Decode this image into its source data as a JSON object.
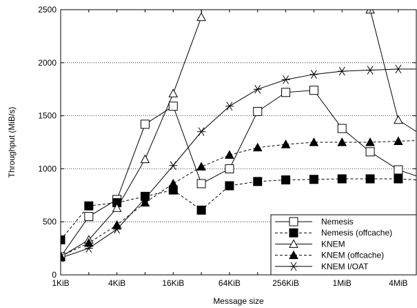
{
  "chart_data": {
    "type": "line",
    "title": "",
    "xlabel": "Message size",
    "ylabel": "Throughput (MiB/s)",
    "x_scale": "log2",
    "x": [
      "1KiB",
      "2KiB",
      "4KiB",
      "8KiB",
      "16KiB",
      "32KiB",
      "64KiB",
      "128KiB",
      "256KiB",
      "512KiB",
      "1MiB",
      "2MiB",
      "4MiB",
      "8MiB"
    ],
    "x_ticks": [
      "1KiB",
      "4KiB",
      "16KiB",
      "64KiB",
      "256KiB",
      "1MiB",
      "4MiB"
    ],
    "ylim": [
      0,
      2500
    ],
    "y_ticks": [
      0,
      500,
      1000,
      1500,
      2000,
      2500
    ],
    "grid": "horizontal dotted",
    "legend_position": "bottom-right",
    "series": [
      {
        "name": "Nemesis",
        "marker": "open-square",
        "line": "solid",
        "values": [
          170,
          550,
          710,
          1420,
          1590,
          860,
          1000,
          1540,
          1720,
          1740,
          1380,
          1160,
          990,
          900
        ]
      },
      {
        "name": "Nemesis (offcache)",
        "marker": "filled-square",
        "line": "dashed",
        "values": [
          330,
          650,
          680,
          740,
          800,
          610,
          840,
          880,
          895,
          900,
          905,
          905,
          905,
          890
        ]
      },
      {
        "name": "KNEM",
        "marker": "open-triangle",
        "line": "solid",
        "values": [
          170,
          330,
          630,
          1090,
          1710,
          2430,
          null,
          null,
          null,
          null,
          null,
          2500,
          1460,
          1290
        ]
      },
      {
        "name": "KNEM (offcache)",
        "marker": "filled-triangle",
        "line": "dashed",
        "values": [
          175,
          300,
          470,
          680,
          860,
          1020,
          1130,
          1200,
          1230,
          1250,
          1250,
          1250,
          1260,
          1270
        ]
      },
      {
        "name": "KNEM I/OAT",
        "marker": "star",
        "line": "solid",
        "values": [
          160,
          250,
          430,
          720,
          1030,
          1350,
          1590,
          1750,
          1840,
          1890,
          1920,
          1930,
          1940,
          1940
        ]
      }
    ]
  }
}
